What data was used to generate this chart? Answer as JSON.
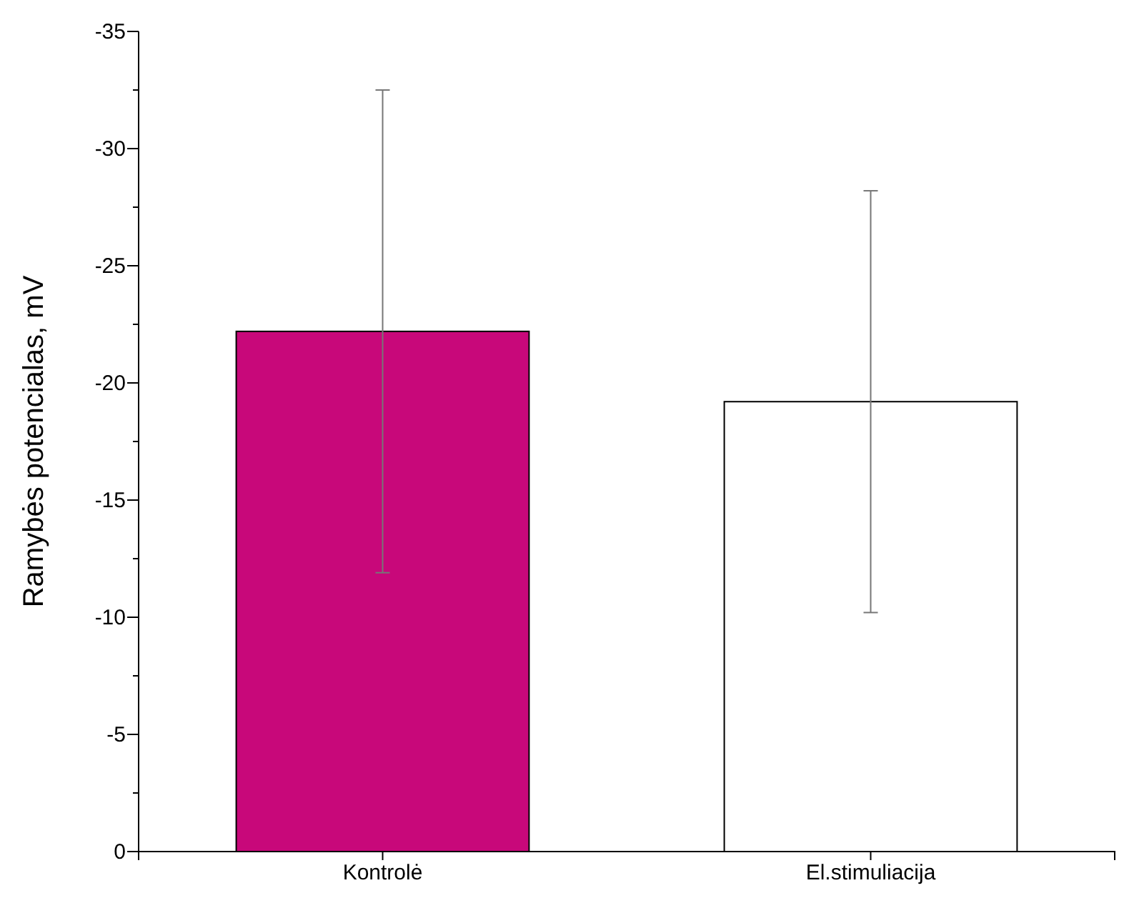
{
  "chart_data": {
    "type": "bar",
    "ylabel": "Ramybės potencialas, mV",
    "categories": [
      "Kontrolė",
      "El.stimuliacija"
    ],
    "values": [
      -22.2,
      -19.2
    ],
    "errors": [
      10.3,
      9.0
    ],
    "colors": [
      "#c8087a",
      "#ffffff"
    ],
    "ylim": [
      0,
      -35
    ],
    "yticks": [
      0,
      {
        "value": -2.5,
        "label": null
      },
      -5,
      {
        "value": -7.5,
        "label": null
      },
      -10,
      {
        "value": -12.5,
        "label": null
      },
      -15,
      {
        "value": -17.5,
        "label": null
      },
      -20,
      {
        "value": -22.5,
        "label": null
      },
      -25,
      {
        "value": -27.5,
        "label": null
      },
      -30,
      {
        "value": -32.5,
        "label": null
      },
      -35
    ],
    "grid": false
  }
}
